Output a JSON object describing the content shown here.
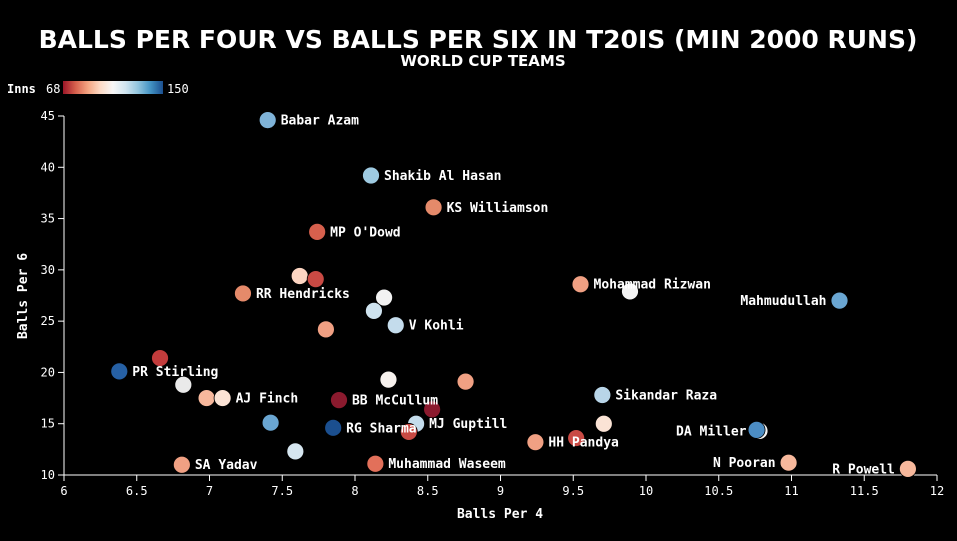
{
  "chart_data": {
    "type": "scatter",
    "title": "BALLS PER FOUR VS BALLS PER SIX IN T20IS (MIN 2000 RUNS)",
    "subtitle": "WORLD CUP TEAMS",
    "xlabel": "Balls Per 4",
    "ylabel": "Balls Per 6",
    "xlim": [
      6,
      12
    ],
    "ylim": [
      10,
      45
    ],
    "x_ticks": [
      "6",
      "6.5",
      "7",
      "7.5",
      "8",
      "8.5",
      "9",
      "9.5",
      "10",
      "10.5",
      "11",
      "11.5",
      "12"
    ],
    "y_ticks": [
      "10",
      "15",
      "20",
      "25",
      "30",
      "35",
      "40",
      "45"
    ],
    "grid": false,
    "legend": {
      "label": "Inns",
      "min": "68",
      "max": "150",
      "placement": "top-left",
      "colors": [
        "#9b1628",
        "#d6604d",
        "#f4a582",
        "#fddbc7",
        "#f7f7f7",
        "#d1e5f0",
        "#92c5de",
        "#4393c3",
        "#1b4f8f"
      ]
    },
    "points": [
      {
        "label": "Babar Azam",
        "x": 7.4,
        "y": 44.6,
        "color": "#7fb3d8"
      },
      {
        "label": "Shakib Al Hasan",
        "x": 8.11,
        "y": 39.2,
        "color": "#9ecae1"
      },
      {
        "label": "KS Williamson",
        "x": 8.54,
        "y": 36.1,
        "color": "#e58a6a"
      },
      {
        "label": "MP O'Dowd",
        "x": 7.74,
        "y": 33.7,
        "color": "#d6604d"
      },
      {
        "label": "",
        "x": 7.62,
        "y": 29.4,
        "color": "#fcd5c2"
      },
      {
        "label": "",
        "x": 7.73,
        "y": 29.1,
        "color": "#c94a44"
      },
      {
        "label": "Mohammad Rizwan",
        "x": 9.55,
        "y": 28.6,
        "color": "#f0a083"
      },
      {
        "label": "",
        "x": 9.89,
        "y": 27.9,
        "color": "#f4f4f4"
      },
      {
        "label": "RR Hendricks",
        "x": 7.23,
        "y": 27.7,
        "color": "#e58a6a"
      },
      {
        "label": "",
        "x": 8.2,
        "y": 27.3,
        "color": "#f2f2f2"
      },
      {
        "label": "Mahmudullah",
        "x": 11.33,
        "y": 27.0,
        "color": "#6aa6d2"
      },
      {
        "label": "",
        "x": 8.13,
        "y": 26.0,
        "color": "#cfe3ef"
      },
      {
        "label": "V Kohli",
        "x": 8.28,
        "y": 24.6,
        "color": "#c4dcec"
      },
      {
        "label": "",
        "x": 7.8,
        "y": 24.2,
        "color": "#f0a083"
      },
      {
        "label": "",
        "x": 6.66,
        "y": 21.4,
        "color": "#c23c3c"
      },
      {
        "label": "PR Stirling",
        "x": 6.38,
        "y": 20.1,
        "color": "#2660a4"
      },
      {
        "label": "",
        "x": 8.23,
        "y": 19.3,
        "color": "#f7f2ee"
      },
      {
        "label": "",
        "x": 8.76,
        "y": 19.1,
        "color": "#f0a083"
      },
      {
        "label": "",
        "x": 6.82,
        "y": 18.8,
        "color": "#eaeaea"
      },
      {
        "label": "Sikandar Raza",
        "x": 9.7,
        "y": 17.8,
        "color": "#b8d5e8"
      },
      {
        "label": "",
        "x": 6.98,
        "y": 17.5,
        "color": "#f7b89c"
      },
      {
        "label": "AJ Finch",
        "x": 7.09,
        "y": 17.5,
        "color": "#fbe3d5"
      },
      {
        "label": "BB McCullum",
        "x": 7.89,
        "y": 17.3,
        "color": "#8b1a2e"
      },
      {
        "label": "",
        "x": 8.53,
        "y": 16.4,
        "color": "#8b1a2e"
      },
      {
        "label": "",
        "x": 7.42,
        "y": 15.1,
        "color": "#6aa6d2"
      },
      {
        "label": "MJ Guptill",
        "x": 8.42,
        "y": 15.0,
        "color": "#c4dcec"
      },
      {
        "label": "",
        "x": 9.71,
        "y": 15.0,
        "color": "#fbe3d5"
      },
      {
        "label": "RG Sharma",
        "x": 7.85,
        "y": 14.6,
        "color": "#1b4f8f"
      },
      {
        "label": "",
        "x": 8.37,
        "y": 14.2,
        "color": "#c94a44"
      },
      {
        "label": "DA Miller",
        "x": 10.78,
        "y": 14.3,
        "color": "#f5f5f5"
      },
      {
        "label": "",
        "x": 10.76,
        "y": 14.4,
        "color": "#4c8dc4"
      },
      {
        "label": "",
        "x": 9.52,
        "y": 13.6,
        "color": "#c94a44"
      },
      {
        "label": "HH Pandya",
        "x": 9.24,
        "y": 13.2,
        "color": "#f0a083"
      },
      {
        "label": "",
        "x": 7.59,
        "y": 12.3,
        "color": "#d6e6f0"
      },
      {
        "label": "N Pooran",
        "x": 10.98,
        "y": 11.2,
        "color": "#f7b89c"
      },
      {
        "label": "SA Yadav",
        "x": 6.81,
        "y": 11.0,
        "color": "#f0a083"
      },
      {
        "label": "Muhammad Waseem",
        "x": 8.14,
        "y": 11.1,
        "color": "#e2705a"
      },
      {
        "label": "R Powell",
        "x": 11.8,
        "y": 10.6,
        "color": "#f7b89c"
      }
    ]
  }
}
